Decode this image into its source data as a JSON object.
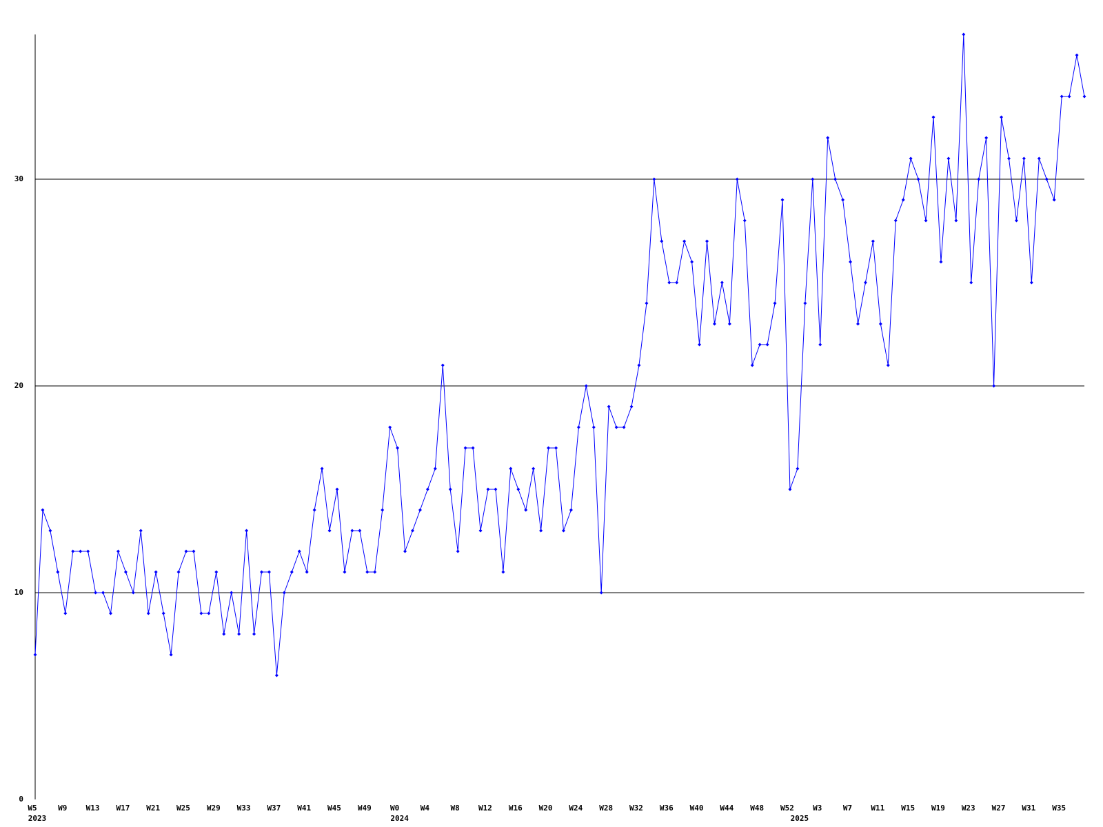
{
  "chart_data": {
    "type": "line",
    "color": "#0000ff",
    "categories": [
      "W5",
      null,
      null,
      null,
      "W9",
      null,
      null,
      null,
      "W13",
      null,
      null,
      null,
      "W17",
      null,
      null,
      null,
      "W21",
      null,
      null,
      null,
      "W25",
      null,
      null,
      null,
      "W29",
      null,
      null,
      null,
      "W33",
      null,
      null,
      null,
      "W37",
      null,
      null,
      null,
      "W41",
      null,
      null,
      null,
      "W45",
      null,
      null,
      null,
      "W49",
      null,
      null,
      null,
      "W0",
      null,
      null,
      null,
      "W4",
      null,
      null,
      null,
      "W8",
      null,
      null,
      null,
      "W12",
      null,
      null,
      null,
      "W16",
      null,
      null,
      null,
      "W20",
      null,
      null,
      null,
      "W24",
      null,
      null,
      null,
      "W28",
      null,
      null,
      null,
      "W32",
      null,
      null,
      null,
      "W36",
      null,
      null,
      null,
      "W40",
      null,
      null,
      null,
      "W44",
      null,
      null,
      null,
      "W48",
      null,
      null,
      null,
      "W52",
      null,
      null,
      null,
      "W3",
      null,
      null,
      null,
      "W7",
      null,
      null,
      null,
      "W11",
      null,
      null,
      null,
      "W15",
      null,
      null,
      null,
      "W19",
      null,
      null,
      null,
      "W23",
      null,
      null,
      null,
      "W27",
      null,
      null,
      null,
      "W31",
      null,
      null,
      null,
      "W35",
      null,
      null,
      null
    ],
    "year_labels": [
      {
        "text": "2023",
        "at": 0
      },
      {
        "text": "2024",
        "at": 48
      },
      {
        "text": "2025",
        "at": 101
      }
    ],
    "values": [
      7,
      14,
      13,
      11,
      9,
      12,
      12,
      12,
      10,
      10,
      9,
      12,
      11,
      10,
      13,
      9,
      11,
      9,
      7,
      11,
      12,
      12,
      9,
      9,
      11,
      8,
      10,
      8,
      13,
      8,
      11,
      11,
      6,
      10,
      11,
      12,
      11,
      14,
      16,
      13,
      15,
      11,
      13,
      13,
      11,
      11,
      14,
      18,
      17,
      12,
      13,
      14,
      15,
      16,
      21,
      15,
      12,
      17,
      17,
      13,
      15,
      15,
      11,
      16,
      15,
      14,
      16,
      13,
      17,
      17,
      13,
      14,
      18,
      20,
      18,
      10,
      19,
      18,
      18,
      19,
      21,
      24,
      30,
      27,
      25,
      25,
      27,
      26,
      22,
      27,
      23,
      25,
      23,
      30,
      28,
      21,
      22,
      22,
      24,
      29,
      15,
      16,
      24,
      30,
      22,
      32,
      30,
      29,
      26,
      23,
      25,
      27,
      23,
      21,
      28,
      29,
      31,
      30,
      28,
      33,
      26,
      31,
      28,
      37,
      25,
      30,
      32,
      20,
      33,
      31,
      28,
      31,
      25,
      31,
      30,
      29,
      34,
      34,
      36,
      34
    ],
    "ylim": [
      0,
      37
    ],
    "yticks": [
      0,
      10,
      20,
      30
    ],
    "grid": true
  }
}
